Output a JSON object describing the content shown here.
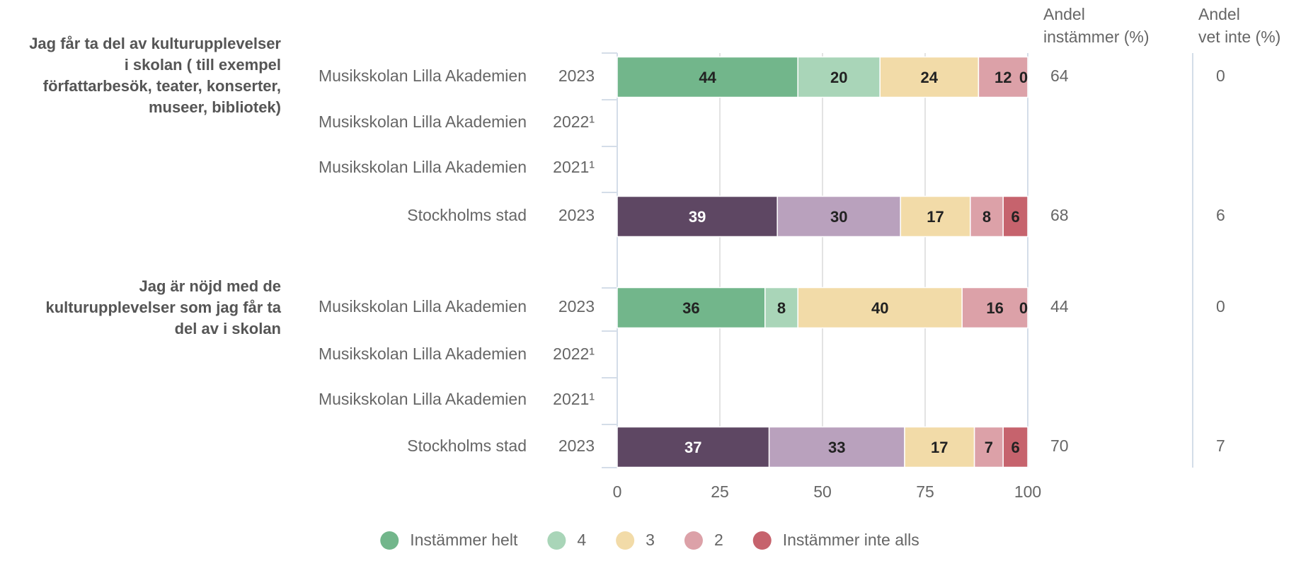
{
  "chart_data": {
    "type": "stacked_bar_horizontal",
    "groups": [
      {
        "label": [
          "Jag får ta del av kulturupplevelser",
          "i skolan ( till exempel",
          "författarbesök, teater, konserter,",
          "museer, bibliotek)"
        ],
        "rows": [
          0,
          1,
          2,
          3
        ]
      },
      {
        "label": [
          "Jag är nöjd med de",
          "kulturupplevelser som jag får ta",
          "del av i skolan"
        ],
        "rows": [
          4,
          5,
          6,
          7
        ]
      }
    ],
    "categories": [
      "Musikskolan Lilla Akademien",
      "Musikskolan Lilla Akademien",
      "Musikskolan Lilla Akademien",
      "Stockholms stad",
      "Musikskolan Lilla Akademien",
      "Musikskolan Lilla Akademien",
      "Musikskolan Lilla Akademien",
      "Stockholms stad"
    ],
    "years": [
      "2023",
      "2022¹",
      "2021¹",
      "2023",
      "2023",
      "2022¹",
      "2021¹",
      "2023"
    ],
    "series": [
      {
        "name": "Instämmer helt",
        "color": "#72b68b",
        "comparison_color": "#5e4763",
        "values": [
          44,
          null,
          null,
          39,
          36,
          null,
          null,
          37
        ]
      },
      {
        "name": "4",
        "color": "#a9d5b8",
        "comparison_color": "#b9a1bd",
        "values": [
          20,
          null,
          null,
          30,
          8,
          null,
          null,
          33
        ]
      },
      {
        "name": "3",
        "color": "#f2dba8",
        "comparison_color": "#f2dba8",
        "values": [
          24,
          null,
          null,
          17,
          40,
          null,
          null,
          17
        ]
      },
      {
        "name": "2",
        "color": "#dca1a8",
        "comparison_color": "#dca1a8",
        "values": [
          12,
          null,
          null,
          8,
          16,
          null,
          null,
          7
        ]
      },
      {
        "name": "Instämmer inte alls",
        "color": "#c6636d",
        "comparison_color": "#c6636d",
        "values": [
          0,
          null,
          null,
          6,
          0,
          null,
          null,
          6
        ]
      }
    ],
    "xlim": [
      0,
      100
    ],
    "xticks": [
      0,
      25,
      50,
      75,
      100
    ],
    "grid": true,
    "columns": [
      {
        "header": [
          "Andel",
          "instämmer (%)"
        ],
        "values": [
          64,
          null,
          null,
          68,
          44,
          null,
          null,
          70
        ]
      },
      {
        "header": [
          "Andel",
          "vet inte (%)"
        ],
        "values": [
          0,
          null,
          null,
          6,
          0,
          null,
          null,
          7
        ]
      }
    ]
  }
}
